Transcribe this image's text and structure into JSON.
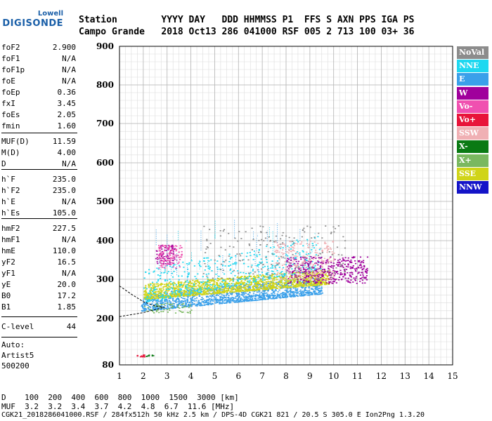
{
  "logo": {
    "line1": "Lowell",
    "line2": "DIGISONDE"
  },
  "header": {
    "line1": "Station        YYYY DAY   DDD HHMMSS P1  FFS S AXN PPS IGA PS",
    "line2": "Campo Grande   2018 Oct13 286 041000 RSF 005 2 713 100 03+ 36"
  },
  "params": [
    {
      "k": "foF2",
      "v": "2.900"
    },
    {
      "k": "foF1",
      "v": "N/A"
    },
    {
      "k": "foF1p",
      "v": "N/A"
    },
    {
      "k": "foE",
      "v": "N/A"
    },
    {
      "k": "foEp",
      "v": "0.36"
    },
    {
      "k": "fxI",
      "v": "3.45"
    },
    {
      "k": "foEs",
      "v": "2.05"
    },
    {
      "k": "fmin",
      "v": "1.60"
    },
    {
      "k": "MUF(D)",
      "v": "11.59"
    },
    {
      "k": "M(D)",
      "v": "4.00"
    },
    {
      "k": "D",
      "v": "N/A"
    },
    {
      "k": "h`F",
      "v": "235.0"
    },
    {
      "k": "h`F2",
      "v": "235.0"
    },
    {
      "k": "h`E",
      "v": "N/A"
    },
    {
      "k": "h`Es",
      "v": "105.0"
    },
    {
      "k": "hmF2",
      "v": "227.5"
    },
    {
      "k": "hmF1",
      "v": "N/A"
    },
    {
      "k": "hmE",
      "v": "110.0"
    },
    {
      "k": "yF2",
      "v": "16.5"
    },
    {
      "k": "yF1",
      "v": "N/A"
    },
    {
      "k": "yE",
      "v": "20.0"
    },
    {
      "k": "B0",
      "v": "17.2"
    },
    {
      "k": "B1",
      "v": "1.85"
    },
    {
      "k": "C-level",
      "v": "44"
    }
  ],
  "notes": [
    "Auto:",
    "Artist5",
    "500200"
  ],
  "legend": [
    {
      "label": "NoVal",
      "color": "#8c8c8c"
    },
    {
      "label": "NNE",
      "color": "#1ed8f0"
    },
    {
      "label": "E",
      "color": "#3aa0ea"
    },
    {
      "label": "W",
      "color": "#a0009c"
    },
    {
      "label": "Vo-",
      "color": "#f050b0"
    },
    {
      "label": "Vo+",
      "color": "#e8143a"
    },
    {
      "label": "SSW",
      "color": "#f0b0b4"
    },
    {
      "label": "X-",
      "color": "#0a7a14"
    },
    {
      "label": "X+",
      "color": "#7ab860"
    },
    {
      "label": "SSE",
      "color": "#d0d418"
    },
    {
      "label": "NNW",
      "color": "#1414c8"
    }
  ],
  "footer": {
    "line1": "D    100  200  400  600  800  1000  1500  3000 [km]",
    "line2": "MUF  3.2  3.2  3.4  3.7  4.2  4.8  6.7  11.6 [MHz]",
    "line3": "CGK21_2018286041000.RSF / 284fx512h 50 kHz 2.5 km / DPS-4D CGK21 821 / 20.5 S 305.0 E Ion2Png 1.3.20"
  },
  "chart_data": {
    "type": "scatter",
    "xlabel": "",
    "ylabel": "",
    "xlim": [
      1,
      15
    ],
    "ylim": [
      80,
      900
    ],
    "xticks": [
      1,
      2,
      3,
      4,
      5,
      6,
      7,
      8,
      9,
      10,
      11,
      12,
      13,
      14,
      15
    ],
    "yticks": [
      80,
      200,
      300,
      400,
      500,
      600,
      700,
      800,
      900
    ],
    "grid": true,
    "legend_position": "right",
    "clusters": [
      {
        "series": "E",
        "x": [
          1.9,
          9.5
        ],
        "y": [
          220,
          300
        ]
      },
      {
        "series": "SSE",
        "x": [
          2.0,
          9.8
        ],
        "y": [
          250,
          320
        ]
      },
      {
        "series": "NNE",
        "x": [
          2.0,
          9.5
        ],
        "y": [
          240,
          400
        ]
      },
      {
        "series": "W",
        "x": [
          8.0,
          11.4
        ],
        "y": [
          290,
          360
        ]
      },
      {
        "series": "W",
        "x": [
          2.5,
          3.3
        ],
        "y": [
          340,
          390
        ]
      },
      {
        "series": "Vo-",
        "x": [
          2.6,
          3.6
        ],
        "y": [
          330,
          390
        ]
      },
      {
        "series": "SSW",
        "x": [
          7.5,
          10.0
        ],
        "y": [
          300,
          400
        ]
      },
      {
        "series": "NoVal",
        "x": [
          4.5,
          10.5
        ],
        "y": [
          300,
          440
        ]
      },
      {
        "series": "X+",
        "x": [
          2.0,
          4.0
        ],
        "y": [
          215,
          240
        ]
      },
      {
        "series": "Vo+",
        "x": [
          1.7,
          2.1
        ],
        "y": [
          102,
          107
        ]
      },
      {
        "series": "X-",
        "x": [
          2.1,
          2.4
        ],
        "y": [
          102,
          107
        ]
      }
    ],
    "trace_points": [
      {
        "x": 1.0,
        "y": 283
      },
      {
        "x": 1.5,
        "y": 262
      },
      {
        "x": 2.0,
        "y": 243
      },
      {
        "x": 2.5,
        "y": 232
      },
      {
        "x": 2.9,
        "y": 229
      }
    ],
    "trace2_points": [
      {
        "x": 1.0,
        "y": 205
      },
      {
        "x": 2.0,
        "y": 215
      },
      {
        "x": 2.9,
        "y": 229
      }
    ]
  }
}
